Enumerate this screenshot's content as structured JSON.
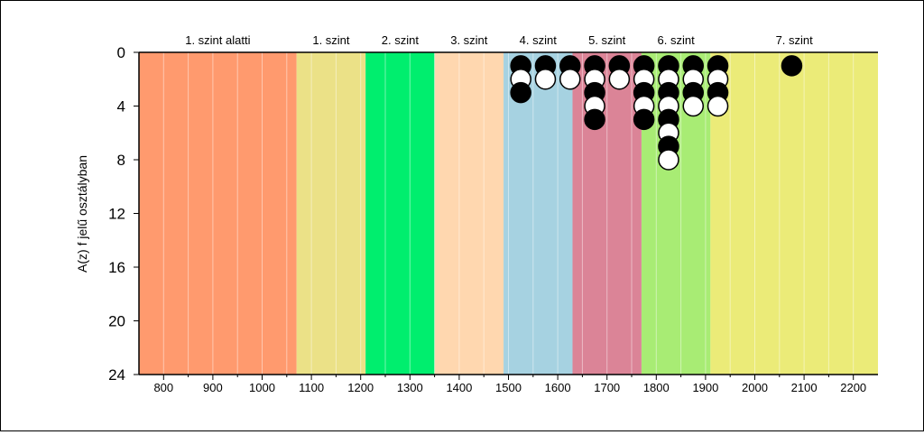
{
  "chart_data": {
    "type": "scatter",
    "title": "",
    "xlabel": "",
    "ylabel": "A(z) f jelű osztályban",
    "xlim": [
      750,
      2250
    ],
    "ylim": [
      24,
      0
    ],
    "x_ticks": [
      "800",
      "900",
      "1000",
      "1100",
      "1200",
      "1300",
      "1400",
      "1500",
      "1600",
      "1700",
      "1800",
      "1900",
      "2000",
      "2100",
      "2200"
    ],
    "y_ticks": [
      "0",
      "4",
      "8",
      "12",
      "16",
      "20",
      "24"
    ],
    "levels": [
      {
        "label": "1. szint alatti",
        "from": 750,
        "to": 1070,
        "color": "#ff9a6e"
      },
      {
        "label": "1. szint",
        "from": 1070,
        "to": 1210,
        "color": "#ebe187"
      },
      {
        "label": "2. szint",
        "from": 1210,
        "to": 1350,
        "color": "#00ee6e"
      },
      {
        "label": "3. szint",
        "from": 1350,
        "to": 1490,
        "color": "#ffd7af"
      },
      {
        "label": "4. szint",
        "from": 1490,
        "to": 1630,
        "color": "#a6d2e1"
      },
      {
        "label": "5. szint",
        "from": 1630,
        "to": 1770,
        "color": "#db8497"
      },
      {
        "label": "6. szint",
        "from": 1770,
        "to": 1910,
        "color": "#a8ec74"
      },
      {
        "label": "7. szint",
        "from": 1910,
        "to": 2250,
        "color": "#ebeb78"
      }
    ],
    "columns": [
      {
        "x": 1525,
        "markers": [
          "black",
          "white",
          "black"
        ]
      },
      {
        "x": 1575,
        "markers": [
          "black",
          "white"
        ]
      },
      {
        "x": 1625,
        "markers": [
          "black",
          "white"
        ]
      },
      {
        "x": 1675,
        "markers": [
          "black",
          "white",
          "black",
          "white",
          "black"
        ]
      },
      {
        "x": 1725,
        "markers": [
          "black",
          "white"
        ]
      },
      {
        "x": 1775,
        "markers": [
          "black",
          "white",
          "black",
          "white",
          "black"
        ]
      },
      {
        "x": 1825,
        "markers": [
          "black",
          "white",
          "black",
          "white",
          "black",
          "white",
          "black",
          "white"
        ]
      },
      {
        "x": 1875,
        "markers": [
          "black",
          "white",
          "black",
          "white"
        ]
      },
      {
        "x": 1925,
        "markers": [
          "black",
          "white",
          "black",
          "white"
        ]
      },
      {
        "x": 2075,
        "markers": [
          "black"
        ]
      }
    ],
    "grid": "vertical",
    "legend": "none"
  }
}
